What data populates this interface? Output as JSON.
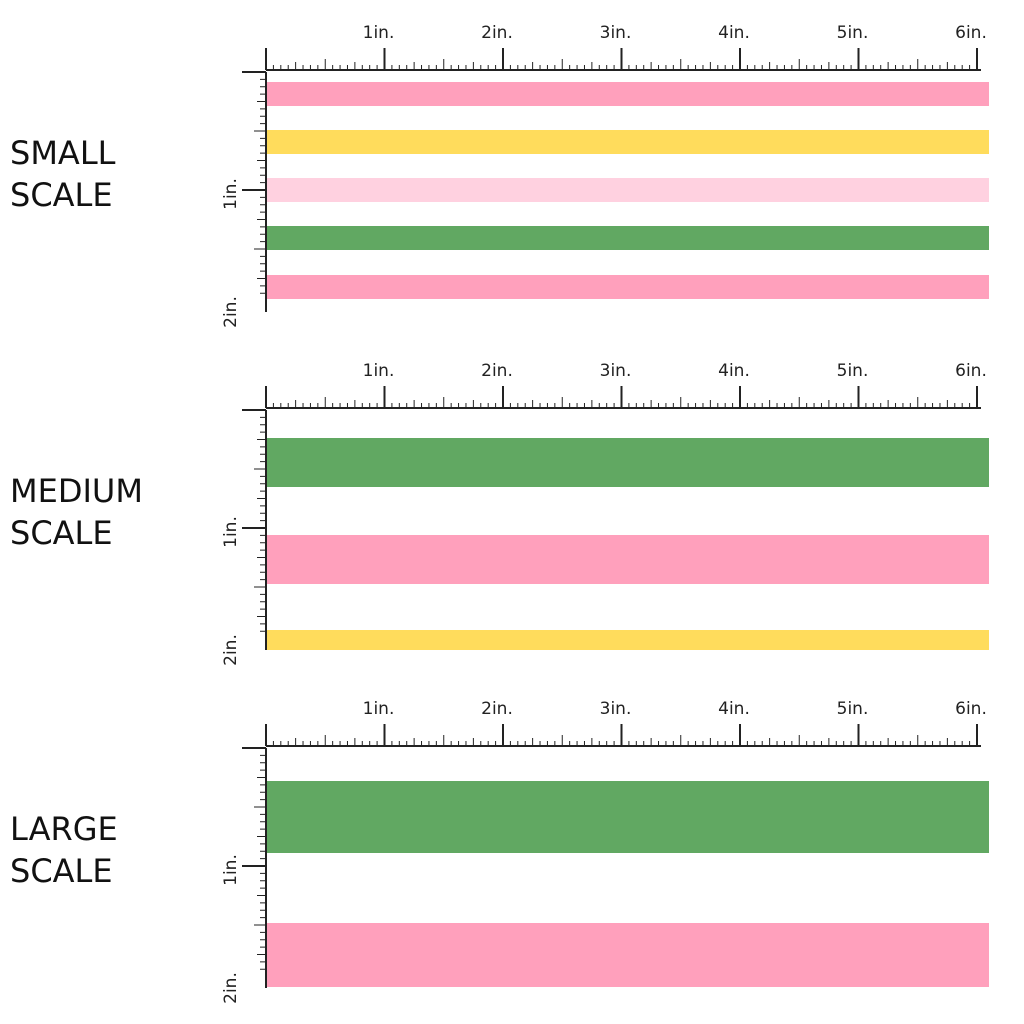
{
  "colors": {
    "pink": "#ffa0bc",
    "yellow": "#ffdc5c",
    "light_pink": "#ffd1e0",
    "green": "#61a862",
    "ruler": "#222222"
  },
  "ruler": {
    "h_labels": [
      "1in.",
      "2in.",
      "3in.",
      "4in.",
      "5in.",
      "6in."
    ],
    "v_labels": [
      "1in.",
      "2in."
    ]
  },
  "panels": [
    {
      "id": "small",
      "label_line1": "SMALL",
      "label_line2": "SCALE",
      "stripes": [
        "pink",
        "yellow",
        "light_pink",
        "green",
        "pink"
      ]
    },
    {
      "id": "medium",
      "label_line1": "MEDIUM",
      "label_line2": "SCALE",
      "stripes": [
        "green",
        "pink",
        "yellow"
      ]
    },
    {
      "id": "large",
      "label_line1": "LARGE",
      "label_line2": "SCALE",
      "stripes": [
        "green",
        "pink"
      ]
    }
  ]
}
